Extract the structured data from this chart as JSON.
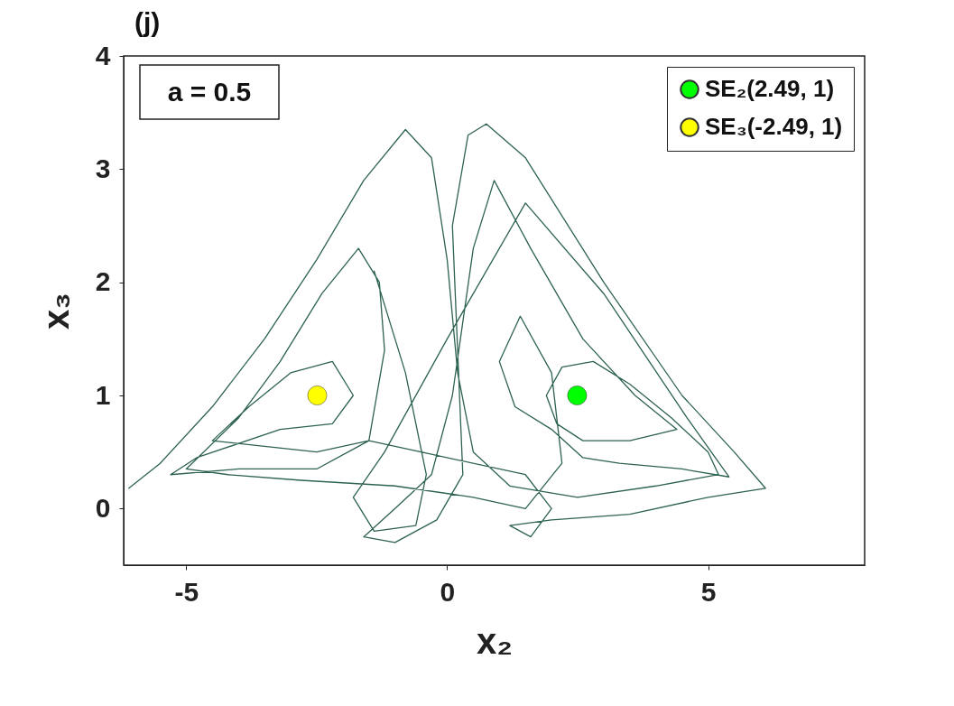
{
  "chart_data": {
    "type": "line",
    "xlabel": "x₂",
    "ylabel": "x₃",
    "annotations": [
      "(j)",
      "a = 0.5"
    ],
    "xlim": [
      -6.2,
      8
    ],
    "xticks": [
      -5,
      0,
      5
    ],
    "ylim": [
      -0.5,
      4
    ],
    "yticks": [
      0,
      1,
      2,
      3,
      4
    ],
    "grid": false,
    "legend": "top right",
    "line_style": "solid",
    "series": [
      {
        "marker": "none",
        "color": "#2e6350",
        "x": [
          -6.1,
          -5.5,
          -4.5,
          -3.5,
          -2.5,
          -1.6,
          -0.8,
          -0.3,
          0.0,
          0.2,
          0.5,
          1.2,
          2.5,
          4.0,
          5.2,
          5.0,
          4.3,
          3.5,
          2.8,
          2.2,
          1.9,
          2.1,
          2.6,
          3.5,
          4.4,
          3.6,
          2.6,
          1.6,
          0.9,
          0.5,
          0.1,
          -0.3,
          -1.0,
          -1.6,
          -1.0,
          -0.2,
          0.3,
          0.1,
          0.4,
          0.75,
          1.5,
          3.0,
          4.5,
          5.5,
          6.1,
          5.0,
          3.5,
          2.0,
          1.2,
          1.6,
          2.0,
          1.5,
          -0.5,
          -1.5,
          -2.5,
          -3.5,
          -4.5,
          -3.8,
          -3.0,
          -2.2,
          -1.8,
          -2.2,
          -3.2,
          -4.8,
          -5.3,
          -4.0,
          -2.5,
          -1.5,
          -1.2,
          -1.3,
          -1.7,
          -2.4,
          -3.2,
          -4.0,
          -5.0,
          -4.2,
          -2.8,
          -1.0,
          0.5,
          1.5,
          2.2,
          2.0,
          1.4,
          1.0,
          1.3,
          2.0,
          2.6,
          3.3,
          4.5,
          5.4,
          4.6,
          3.0,
          1.5,
          0.0,
          -1.2,
          -1.8,
          -1.4,
          -0.6,
          -0.4,
          -0.8,
          -1.4
        ],
        "values": [
          0.18,
          0.4,
          0.9,
          1.5,
          2.2,
          2.9,
          3.35,
          3.1,
          2.2,
          1.2,
          0.5,
          0.2,
          0.1,
          0.2,
          0.3,
          0.5,
          0.8,
          1.1,
          1.3,
          1.25,
          1.0,
          0.75,
          0.6,
          0.6,
          0.7,
          1.0,
          1.5,
          2.3,
          2.9,
          2.3,
          1.0,
          0.3,
          0.0,
          -0.25,
          -0.3,
          -0.1,
          0.3,
          2.5,
          3.3,
          3.4,
          3.1,
          2.0,
          1.0,
          0.5,
          0.18,
          0.1,
          -0.05,
          -0.1,
          -0.15,
          -0.25,
          0.0,
          0.3,
          0.5,
          0.6,
          0.5,
          0.55,
          0.6,
          0.9,
          1.2,
          1.3,
          1.0,
          0.75,
          0.7,
          0.45,
          0.3,
          0.35,
          0.35,
          0.6,
          1.4,
          2.0,
          2.3,
          1.9,
          1.3,
          0.8,
          0.35,
          0.3,
          0.25,
          0.2,
          0.1,
          0.0,
          0.4,
          1.2,
          1.7,
          1.3,
          0.9,
          0.7,
          0.45,
          0.4,
          0.35,
          0.28,
          0.8,
          1.9,
          2.7,
          1.5,
          0.5,
          0.1,
          -0.2,
          -0.15,
          0.3,
          1.2,
          2.1
        ]
      },
      {
        "type": "scatter",
        "name": "SE₂(2.49, 1)",
        "color": "#00ff00",
        "x": [
          2.49
        ],
        "values": [
          1
        ]
      },
      {
        "type": "scatter",
        "name": "SE₃(-2.49, 1)",
        "color": "#ffff00",
        "x": [
          -2.49
        ],
        "values": [
          1
        ]
      }
    ]
  }
}
